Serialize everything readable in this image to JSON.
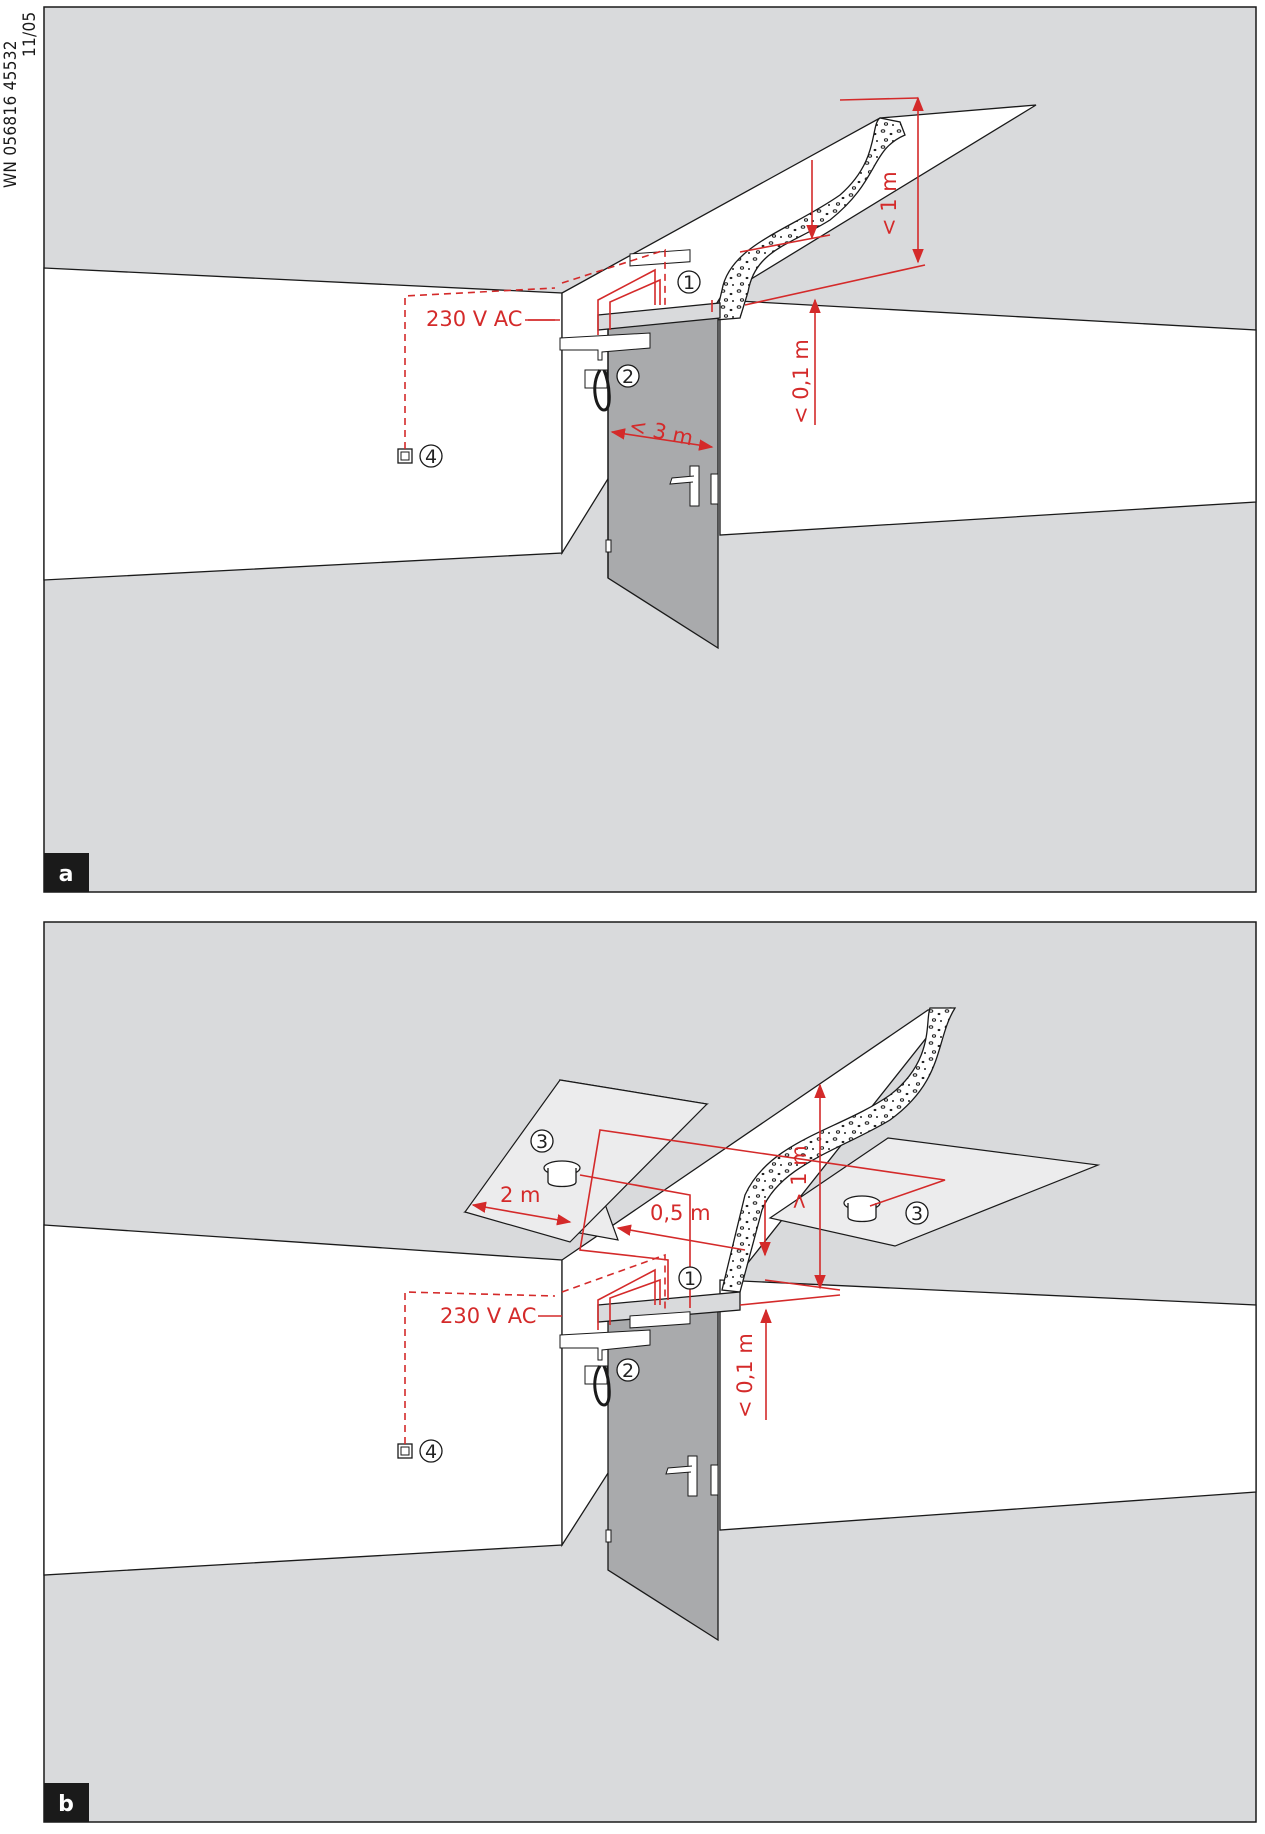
{
  "doc_code": {
    "line1": "WN 056816 45532",
    "line2": "11/05"
  },
  "colors": {
    "wall": "#d9dadc",
    "wall_light": "#ffffff",
    "door": "#a9aaac",
    "red": "#d42a2a",
    "outline": "#1a1a1a"
  },
  "panel_a": {
    "letter": "a",
    "voltage": "230 V AC",
    "dim_ceiling": "< 1 m",
    "dim_below_ceiling": "< 0,1 m",
    "dim_door_width": "< 3 m",
    "callouts": [
      "1",
      "2",
      "4"
    ]
  },
  "panel_b": {
    "letter": "b",
    "voltage": "230 V AC",
    "dim_ceiling": "> 1 m",
    "dim_below_ceiling": "< 0,1 m",
    "dim_lateral": "2 m",
    "dim_offset": "0,5 m",
    "callouts": [
      "1",
      "2",
      "3",
      "3",
      "4"
    ]
  }
}
